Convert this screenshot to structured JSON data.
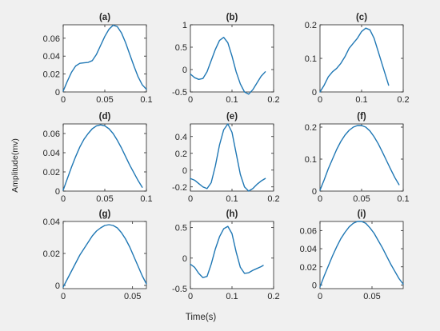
{
  "figure": {
    "xlabel": "Time(s)",
    "ylabel": "Amplitude(mv)",
    "line_color": "#1f77b4",
    "background": "#f0f0f0",
    "axes_background": "#ffffff"
  },
  "chart_data": [
    {
      "type": "line",
      "title": "(a)",
      "xlim": [
        0,
        0.1
      ],
      "ylim": [
        0,
        0.075
      ],
      "xticks": [
        0,
        0.05,
        0.1
      ],
      "xtick_labels": [
        "0",
        "0.05",
        "0.1"
      ],
      "yticks": [
        0,
        0.02,
        0.04,
        0.06
      ],
      "ytick_labels": [
        "0",
        "0.02",
        "0.04",
        "0.06"
      ],
      "series": [
        {
          "x": [
            0,
            0.005,
            0.01,
            0.015,
            0.02,
            0.025,
            0.03,
            0.035,
            0.04,
            0.045,
            0.05,
            0.055,
            0.06,
            0.065,
            0.07,
            0.075,
            0.08,
            0.085,
            0.09,
            0.095,
            0.1
          ],
          "y": [
            0.001,
            0.012,
            0.022,
            0.029,
            0.032,
            0.0325,
            0.033,
            0.035,
            0.042,
            0.052,
            0.062,
            0.07,
            0.0745,
            0.073,
            0.066,
            0.055,
            0.042,
            0.029,
            0.017,
            0.008,
            0.003
          ]
        }
      ]
    },
    {
      "type": "line",
      "title": "(b)",
      "xlim": [
        0,
        0.2
      ],
      "ylim": [
        -0.5,
        1
      ],
      "xticks": [
        0,
        0.1,
        0.2
      ],
      "xtick_labels": [
        "0",
        "0.1",
        "0.2"
      ],
      "yticks": [
        -0.5,
        0,
        0.5,
        1
      ],
      "ytick_labels": [
        "-0.5",
        "0",
        "0.5",
        "1"
      ],
      "series": [
        {
          "x": [
            0,
            0.01,
            0.02,
            0.03,
            0.04,
            0.05,
            0.06,
            0.07,
            0.08,
            0.09,
            0.1,
            0.11,
            0.12,
            0.13,
            0.14,
            0.15,
            0.16,
            0.17,
            0.18
          ],
          "y": [
            -0.1,
            -0.18,
            -0.22,
            -0.2,
            -0.05,
            0.2,
            0.45,
            0.65,
            0.72,
            0.6,
            0.3,
            -0.05,
            -0.32,
            -0.5,
            -0.55,
            -0.45,
            -0.3,
            -0.15,
            -0.05
          ]
        }
      ]
    },
    {
      "type": "line",
      "title": "(c)",
      "xlim": [
        0,
        0.2
      ],
      "ylim": [
        0,
        0.2
      ],
      "xticks": [
        0,
        0.1,
        0.2
      ],
      "xtick_labels": [
        "0",
        "0.1",
        "0.2"
      ],
      "yticks": [
        0,
        0.1,
        0.2
      ],
      "ytick_labels": [
        "0",
        "0.1",
        "0.2"
      ],
      "series": [
        {
          "x": [
            0,
            0.01,
            0.02,
            0.03,
            0.04,
            0.05,
            0.06,
            0.07,
            0.08,
            0.09,
            0.1,
            0.11,
            0.12,
            0.13,
            0.14,
            0.15,
            0.16,
            0.165
          ],
          "y": [
            0,
            0.02,
            0.045,
            0.06,
            0.07,
            0.085,
            0.105,
            0.13,
            0.145,
            0.16,
            0.18,
            0.19,
            0.185,
            0.16,
            0.12,
            0.08,
            0.04,
            0.02
          ]
        }
      ]
    },
    {
      "type": "line",
      "title": "(d)",
      "xlim": [
        0,
        0.1
      ],
      "ylim": [
        0,
        0.07
      ],
      "xticks": [
        0,
        0.05,
        0.1
      ],
      "xtick_labels": [
        "0",
        "0.05",
        "0.1"
      ],
      "yticks": [
        0,
        0.02,
        0.04,
        0.06
      ],
      "ytick_labels": [
        "0",
        "0.02",
        "0.04",
        "0.06"
      ],
      "series": [
        {
          "x": [
            0,
            0.005,
            0.01,
            0.015,
            0.02,
            0.025,
            0.03,
            0.035,
            0.04,
            0.045,
            0.05,
            0.055,
            0.06,
            0.065,
            0.07,
            0.075,
            0.08,
            0.085,
            0.09,
            0.095
          ],
          "y": [
            0.001,
            0.013,
            0.025,
            0.036,
            0.046,
            0.054,
            0.06,
            0.065,
            0.068,
            0.069,
            0.068,
            0.065,
            0.06,
            0.053,
            0.045,
            0.036,
            0.027,
            0.019,
            0.011,
            0.004
          ]
        }
      ]
    },
    {
      "type": "line",
      "title": "(e)",
      "xlim": [
        0,
        0.2
      ],
      "ylim": [
        -0.25,
        0.55
      ],
      "xticks": [
        0,
        0.1,
        0.2
      ],
      "xtick_labels": [
        "0",
        "0.1",
        "0.2"
      ],
      "yticks": [
        -0.2,
        0,
        0.2,
        0.4
      ],
      "ytick_labels": [
        "-0.2",
        "0",
        "0.2",
        "0.4"
      ],
      "series": [
        {
          "x": [
            0,
            0.01,
            0.02,
            0.03,
            0.04,
            0.05,
            0.06,
            0.07,
            0.08,
            0.09,
            0.1,
            0.11,
            0.12,
            0.13,
            0.14,
            0.15,
            0.16,
            0.17,
            0.18
          ],
          "y": [
            -0.1,
            -0.12,
            -0.16,
            -0.2,
            -0.22,
            -0.15,
            0.05,
            0.3,
            0.48,
            0.55,
            0.45,
            0.2,
            -0.05,
            -0.2,
            -0.25,
            -0.22,
            -0.17,
            -0.13,
            -0.1
          ]
        }
      ]
    },
    {
      "type": "line",
      "title": "(f)",
      "xlim": [
        0,
        0.1
      ],
      "ylim": [
        0,
        0.21
      ],
      "xticks": [
        0,
        0.05,
        0.1
      ],
      "xtick_labels": [
        "0",
        "0.05",
        "0.1"
      ],
      "yticks": [
        0,
        0.1,
        0.2
      ],
      "ytick_labels": [
        "0",
        "0.1",
        "0.2"
      ],
      "series": [
        {
          "x": [
            0,
            0.005,
            0.01,
            0.015,
            0.02,
            0.025,
            0.03,
            0.035,
            0.04,
            0.045,
            0.05,
            0.055,
            0.06,
            0.065,
            0.07,
            0.075,
            0.08,
            0.085,
            0.09,
            0.095
          ],
          "y": [
            0.003,
            0.035,
            0.07,
            0.1,
            0.13,
            0.155,
            0.175,
            0.19,
            0.2,
            0.205,
            0.205,
            0.2,
            0.188,
            0.17,
            0.148,
            0.122,
            0.095,
            0.068,
            0.042,
            0.02
          ]
        }
      ]
    },
    {
      "type": "line",
      "title": "(g)",
      "xlim": [
        0,
        0.06
      ],
      "ylim": [
        -0.002,
        0.04
      ],
      "xticks": [
        0,
        0.05
      ],
      "xtick_labels": [
        "0",
        "0.05"
      ],
      "yticks": [
        0,
        0.02,
        0.04
      ],
      "ytick_labels": [
        "0",
        "0.02",
        "0.04"
      ],
      "series": [
        {
          "x": [
            0,
            0.003,
            0.006,
            0.009,
            0.012,
            0.015,
            0.018,
            0.021,
            0.024,
            0.027,
            0.03,
            0.033,
            0.036,
            0.039,
            0.042,
            0.045,
            0.048,
            0.051,
            0.054,
            0.057,
            0.06
          ],
          "y": [
            -0.001,
            0.004,
            0.009,
            0.014,
            0.019,
            0.023,
            0.027,
            0.031,
            0.034,
            0.036,
            0.0375,
            0.038,
            0.0375,
            0.036,
            0.033,
            0.029,
            0.024,
            0.018,
            0.012,
            0.006,
            0.001
          ]
        }
      ]
    },
    {
      "type": "line",
      "title": "(h)",
      "xlim": [
        0,
        0.2
      ],
      "ylim": [
        -0.5,
        0.6
      ],
      "xticks": [
        0,
        0.1,
        0.2
      ],
      "xtick_labels": [
        "0",
        "0.1",
        "0.2"
      ],
      "yticks": [
        -0.5,
        0,
        0.5
      ],
      "ytick_labels": [
        "-0.5",
        "0",
        "0.5"
      ],
      "series": [
        {
          "x": [
            0,
            0.01,
            0.02,
            0.03,
            0.04,
            0.05,
            0.06,
            0.07,
            0.08,
            0.09,
            0.1,
            0.11,
            0.12,
            0.13,
            0.14,
            0.15,
            0.16,
            0.17,
            0.175
          ],
          "y": [
            -0.1,
            -0.15,
            -0.25,
            -0.32,
            -0.3,
            -0.1,
            0.15,
            0.35,
            0.48,
            0.52,
            0.4,
            0.1,
            -0.15,
            -0.25,
            -0.24,
            -0.2,
            -0.17,
            -0.14,
            -0.12
          ]
        }
      ]
    },
    {
      "type": "line",
      "title": "(i)",
      "xlim": [
        0,
        0.08
      ],
      "ylim": [
        -0.004,
        0.07
      ],
      "xticks": [
        0,
        0.05
      ],
      "xtick_labels": [
        "0",
        "0.05"
      ],
      "yticks": [
        0,
        0.02,
        0.04,
        0.06
      ],
      "ytick_labels": [
        "0",
        "0.02",
        "0.04",
        "0.06"
      ],
      "series": [
        {
          "x": [
            0,
            0.004,
            0.008,
            0.012,
            0.016,
            0.02,
            0.024,
            0.028,
            0.032,
            0.036,
            0.04,
            0.044,
            0.048,
            0.052,
            0.056,
            0.06,
            0.064,
            0.068,
            0.072,
            0.076,
            0.08
          ],
          "y": [
            -0.002,
            0.01,
            0.021,
            0.032,
            0.042,
            0.051,
            0.058,
            0.064,
            0.068,
            0.07,
            0.07,
            0.068,
            0.063,
            0.057,
            0.049,
            0.041,
            0.032,
            0.023,
            0.015,
            0.007,
            0.001
          ]
        }
      ]
    }
  ]
}
